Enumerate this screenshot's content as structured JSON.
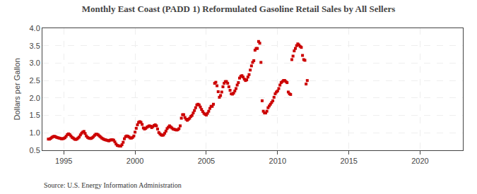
{
  "chart_data": {
    "type": "scatter",
    "title": "Monthly East Coast (PADD 1) Reformulated Gasoline Retail Sales by All Sellers",
    "ylabel": "Dollars per Gallon",
    "annotations": [
      "Source: U.S. Energy Information Administration"
    ],
    "color": "#cc0000",
    "marker": "square",
    "grid": true,
    "xlim": [
      1993.5,
      2023.0
    ],
    "ylim": [
      0.5,
      4.0
    ],
    "xticks": [
      1995,
      2000,
      2005,
      2010,
      2015,
      2020
    ],
    "yticks": [
      0.5,
      {
        "value": 1.0,
        "label": "1.0"
      },
      1.5,
      {
        "value": 2.0,
        "label": "2.0"
      },
      2.5,
      {
        "value": 3.0,
        "label": "3.0"
      },
      3.5,
      {
        "value": 4.0,
        "label": "4.0"
      }
    ],
    "x": [
      1993.917,
      1994.0,
      1994.083,
      1994.167,
      1994.25,
      1994.333,
      1994.417,
      1994.5,
      1994.583,
      1994.667,
      1994.75,
      1994.833,
      1994.917,
      1995.0,
      1995.083,
      1995.167,
      1995.25,
      1995.333,
      1995.417,
      1995.5,
      1995.583,
      1995.667,
      1995.75,
      1995.833,
      1995.917,
      1996.0,
      1996.083,
      1996.167,
      1996.25,
      1996.333,
      1996.417,
      1996.5,
      1996.583,
      1996.667,
      1996.75,
      1996.833,
      1996.917,
      1997.0,
      1997.083,
      1997.167,
      1997.25,
      1997.333,
      1997.417,
      1997.5,
      1997.583,
      1997.667,
      1997.75,
      1997.833,
      1997.917,
      1998.0,
      1998.083,
      1998.167,
      1998.25,
      1998.333,
      1998.417,
      1998.5,
      1998.583,
      1998.667,
      1998.75,
      1998.833,
      1998.917,
      1999.0,
      1999.083,
      1999.167,
      1999.25,
      1999.333,
      1999.417,
      1999.5,
      1999.583,
      1999.667,
      1999.75,
      1999.833,
      1999.917,
      2000.0,
      2000.083,
      2000.167,
      2000.25,
      2000.333,
      2000.417,
      2000.5,
      2000.583,
      2000.667,
      2000.75,
      2000.833,
      2000.917,
      2001.0,
      2001.083,
      2001.167,
      2001.25,
      2001.333,
      2001.417,
      2001.5,
      2001.583,
      2001.667,
      2001.75,
      2001.833,
      2001.917,
      2002.0,
      2002.083,
      2002.167,
      2002.25,
      2002.333,
      2002.417,
      2002.5,
      2002.583,
      2002.667,
      2002.75,
      2002.833,
      2002.917,
      2003.0,
      2003.083,
      2003.167,
      2003.25,
      2003.333,
      2003.417,
      2003.5,
      2003.583,
      2003.667,
      2003.75,
      2003.833,
      2003.917,
      2004.0,
      2004.083,
      2004.167,
      2004.25,
      2004.333,
      2004.417,
      2004.5,
      2004.583,
      2004.667,
      2004.75,
      2004.833,
      2004.917,
      2005.0,
      2005.083,
      2005.167,
      2005.25,
      2005.333,
      2005.417,
      2005.5,
      2005.583,
      2005.667,
      2005.75,
      2005.833,
      2005.917,
      2006.0,
      2006.083,
      2006.167,
      2006.25,
      2006.333,
      2006.417,
      2006.5,
      2006.583,
      2006.667,
      2006.75,
      2006.833,
      2006.917,
      2007.0,
      2007.083,
      2007.167,
      2007.25,
      2007.333,
      2007.417,
      2007.5,
      2007.583,
      2007.667,
      2007.75,
      2007.833,
      2007.917,
      2008.0,
      2008.083,
      2008.167,
      2008.25,
      2008.333,
      2008.417,
      2008.5,
      2008.583,
      2008.667,
      2008.75,
      2008.833,
      2008.917,
      2009.0,
      2009.083,
      2009.167,
      2009.25,
      2009.333,
      2009.417,
      2009.5,
      2009.583,
      2009.667,
      2009.75,
      2009.833,
      2009.917,
      2010.0,
      2010.083,
      2010.167,
      2010.25,
      2010.333,
      2010.417,
      2010.5,
      2010.583,
      2010.667,
      2010.75,
      2010.833,
      2010.917,
      2011.0,
      2011.083,
      2011.167,
      2011.25,
      2011.333,
      2011.417,
      2011.5,
      2011.583,
      2011.667,
      2011.75,
      2011.833,
      2011.917,
      2012.0,
      2012.083
    ],
    "values": [
      0.82,
      0.82,
      0.84,
      0.87,
      0.89,
      0.9,
      0.89,
      0.87,
      0.86,
      0.85,
      0.84,
      0.83,
      0.83,
      0.84,
      0.86,
      0.9,
      0.95,
      0.97,
      0.95,
      0.91,
      0.87,
      0.85,
      0.82,
      0.81,
      0.82,
      0.85,
      0.88,
      0.94,
      0.99,
      1.02,
      1.04,
      0.98,
      0.91,
      0.87,
      0.85,
      0.84,
      0.84,
      0.86,
      0.89,
      0.93,
      0.96,
      0.96,
      0.94,
      0.91,
      0.88,
      0.85,
      0.83,
      0.81,
      0.8,
      0.79,
      0.78,
      0.77,
      0.79,
      0.8,
      0.8,
      0.79,
      0.74,
      0.68,
      0.64,
      0.63,
      0.62,
      0.62,
      0.66,
      0.73,
      0.83,
      0.89,
      0.91,
      0.9,
      0.88,
      0.85,
      0.85,
      0.87,
      0.91,
      1.02,
      1.13,
      1.23,
      1.3,
      1.32,
      1.3,
      1.24,
      1.14,
      1.11,
      1.13,
      1.16,
      1.18,
      1.2,
      1.19,
      1.15,
      1.18,
      1.21,
      1.23,
      1.2,
      1.11,
      1.01,
      0.97,
      0.94,
      0.93,
      0.94,
      0.99,
      1.05,
      1.12,
      1.16,
      1.2,
      1.17,
      1.14,
      1.11,
      1.1,
      1.09,
      1.08,
      1.09,
      1.12,
      1.2,
      1.42,
      1.52,
      1.52,
      1.44,
      1.39,
      1.36,
      1.39,
      1.42,
      1.47,
      1.5,
      1.57,
      1.64,
      1.72,
      1.8,
      1.82,
      1.8,
      1.74,
      1.67,
      1.61,
      1.56,
      1.53,
      1.51,
      1.56,
      1.62,
      1.7,
      1.76,
      1.76,
      1.82,
      2.42,
      2.45,
      2.35,
      2.18,
      2.02,
      2.07,
      2.17,
      2.32,
      2.42,
      2.47,
      2.47,
      2.42,
      2.32,
      2.22,
      2.12,
      2.11,
      2.14,
      2.2,
      2.27,
      2.37,
      2.44,
      2.57,
      2.62,
      2.64,
      2.6,
      2.54,
      2.5,
      2.52,
      2.6,
      2.67,
      2.8,
      2.92,
      3.02,
      3.07,
      3.37,
      3.42,
      3.42,
      3.62,
      3.57,
      3.02,
      1.92,
      1.62,
      1.57,
      1.57,
      1.62,
      1.72,
      1.77,
      1.82,
      1.87,
      1.92,
      2.02,
      2.12,
      2.17,
      2.2,
      2.27,
      2.37,
      2.44,
      2.47,
      2.5,
      2.5,
      2.47,
      2.44,
      2.17,
      2.12,
      2.1,
      3.1,
      3.2,
      3.35,
      3.42,
      3.5,
      3.55,
      3.52,
      3.48,
      3.45,
      3.22,
      3.1,
      3.08,
      2.4,
      2.5
    ]
  }
}
